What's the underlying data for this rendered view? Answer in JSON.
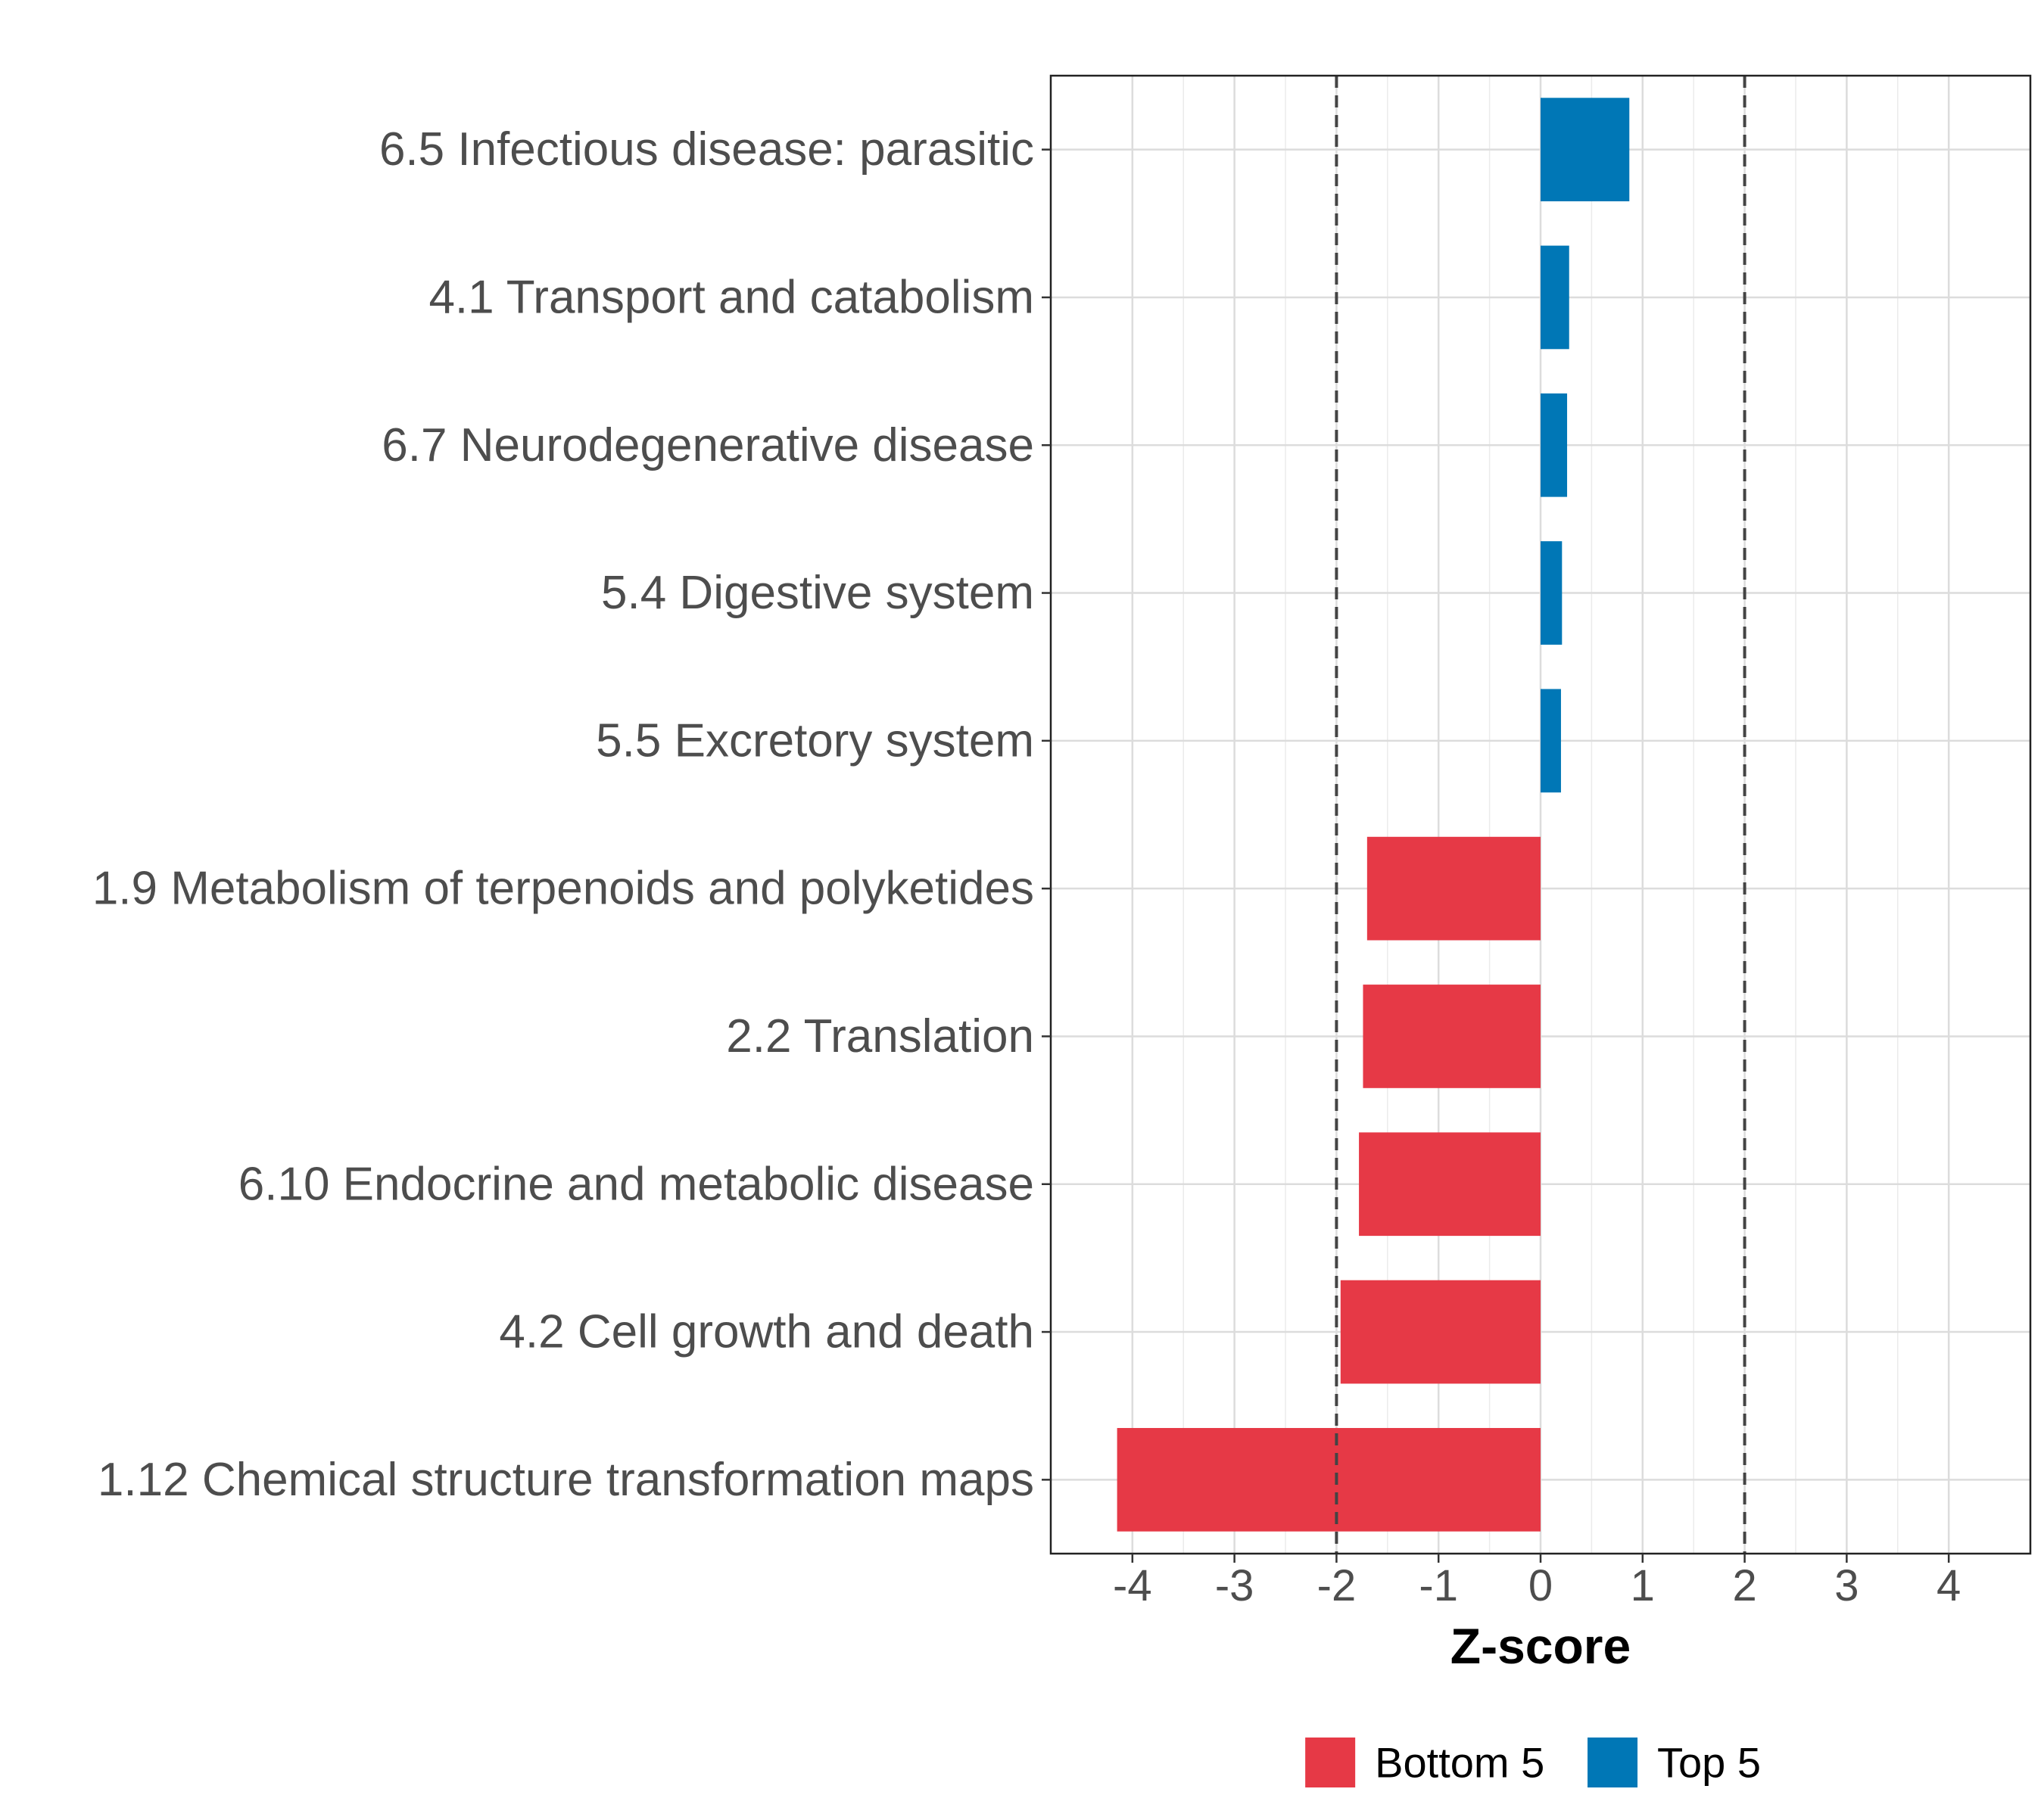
{
  "chart_data": {
    "type": "bar",
    "orientation": "horizontal",
    "title": "",
    "xlabel": "Z-score",
    "ylabel": "",
    "xlim": [
      -4.8,
      4.8
    ],
    "xticks": [
      -4,
      -3,
      -2,
      -1,
      0,
      1,
      2,
      3,
      4
    ],
    "xtick_labels": [
      "-4",
      "-3",
      "-2",
      "-1",
      "0",
      "1",
      "2",
      "3",
      "4"
    ],
    "reference_lines": [
      -2,
      2
    ],
    "grid": true,
    "legend_position": "bottom",
    "categories": [
      "6.5 Infectious disease: parasitic",
      "4.1 Transport and catabolism",
      "6.7 Neurodegenerative disease",
      "5.4 Digestive system",
      "5.5 Excretory system",
      "1.9 Metabolism of terpenoids and polyketides",
      "2.2 Translation",
      "6.10 Endocrine and metabolic disease",
      "4.2 Cell growth and death",
      "1.12 Chemical structure transformation maps"
    ],
    "values": [
      0.87,
      0.28,
      0.26,
      0.21,
      0.2,
      -1.7,
      -1.74,
      -1.78,
      -1.96,
      -4.15
    ],
    "groups": [
      "Top 5",
      "Top 5",
      "Top 5",
      "Top 5",
      "Top 5",
      "Bottom 5",
      "Bottom 5",
      "Bottom 5",
      "Bottom 5",
      "Bottom 5"
    ],
    "legend": [
      {
        "label": "Bottom 5",
        "color": "#E63946"
      },
      {
        "label": "Top 5",
        "color": "#0077B6"
      }
    ]
  }
}
